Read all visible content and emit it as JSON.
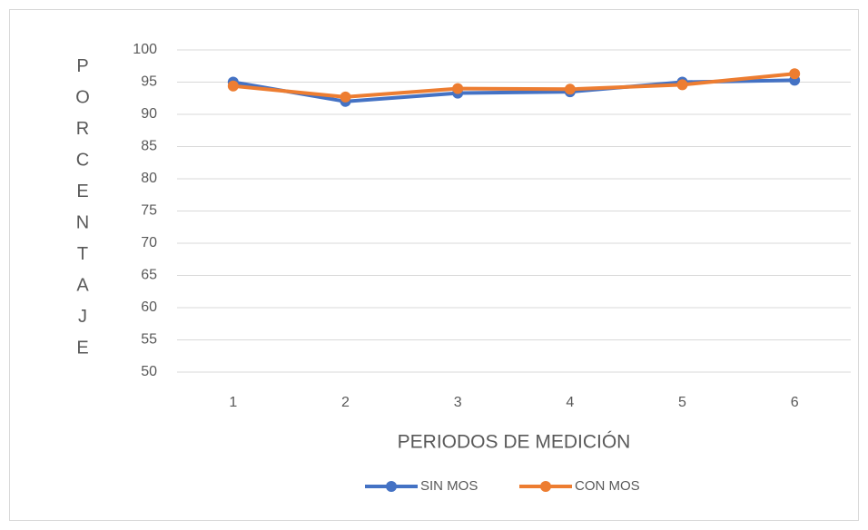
{
  "chart_data": {
    "type": "line",
    "xlabel": "PERIODOS DE MEDICIÓN",
    "ylabel": "PORCENTAJE",
    "categories": [
      1,
      2,
      3,
      4,
      5,
      6
    ],
    "series": [
      {
        "name": "SIN MOS",
        "color": "#4472c4",
        "values": [
          95,
          92,
          93.3,
          93.5,
          95,
          95.3
        ]
      },
      {
        "name": "CON MOS",
        "color": "#ed7d31",
        "values": [
          94.4,
          92.7,
          94,
          93.9,
          94.6,
          96.3
        ]
      }
    ],
    "ylim": [
      50,
      100
    ],
    "yticks": [
      50,
      55,
      60,
      65,
      70,
      75,
      80,
      85,
      90,
      95,
      100
    ],
    "grid": true,
    "legend": "bottom"
  }
}
